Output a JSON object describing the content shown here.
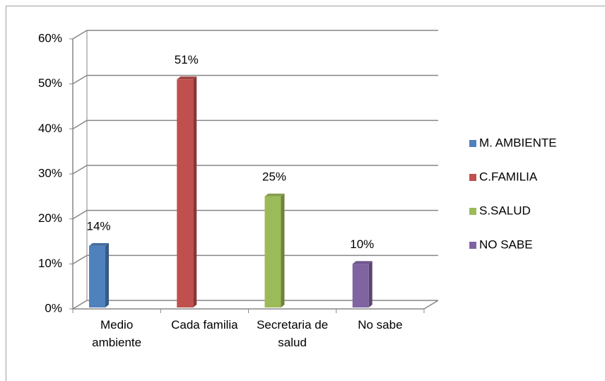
{
  "chart_data": {
    "type": "bar3d",
    "categories": [
      "Medio ambiente",
      "Cada familia",
      "Secretaria de salud",
      "No sabe"
    ],
    "series": [
      {
        "name": "M. AMBIENTE",
        "color": "#4f81bd",
        "values": [
          14,
          null,
          null,
          null
        ],
        "value_labels": [
          "14%",
          null,
          null,
          null
        ]
      },
      {
        "name": "C.FAMILIA",
        "color": "#c0504d",
        "values": [
          null,
          51,
          null,
          null
        ],
        "value_labels": [
          null,
          "51%",
          null,
          null
        ]
      },
      {
        "name": "S.SALUD",
        "color": "#9bbb59",
        "values": [
          null,
          null,
          25,
          null
        ],
        "value_labels": [
          null,
          null,
          "25%",
          null
        ]
      },
      {
        "name": "NO SABE",
        "color": "#8064a2",
        "values": [
          null,
          null,
          null,
          10
        ],
        "value_labels": [
          null,
          null,
          null,
          "10%"
        ]
      }
    ],
    "ylim": [
      0,
      60
    ],
    "yticks": [
      {
        "value": 0,
        "label": "0%"
      },
      {
        "value": 10,
        "label": "10%"
      },
      {
        "value": 20,
        "label": "20%"
      },
      {
        "value": 30,
        "label": "30%"
      },
      {
        "value": 40,
        "label": "40%"
      },
      {
        "value": 50,
        "label": "50%"
      },
      {
        "value": 60,
        "label": "60%"
      }
    ],
    "grid": true,
    "legend": "right"
  }
}
